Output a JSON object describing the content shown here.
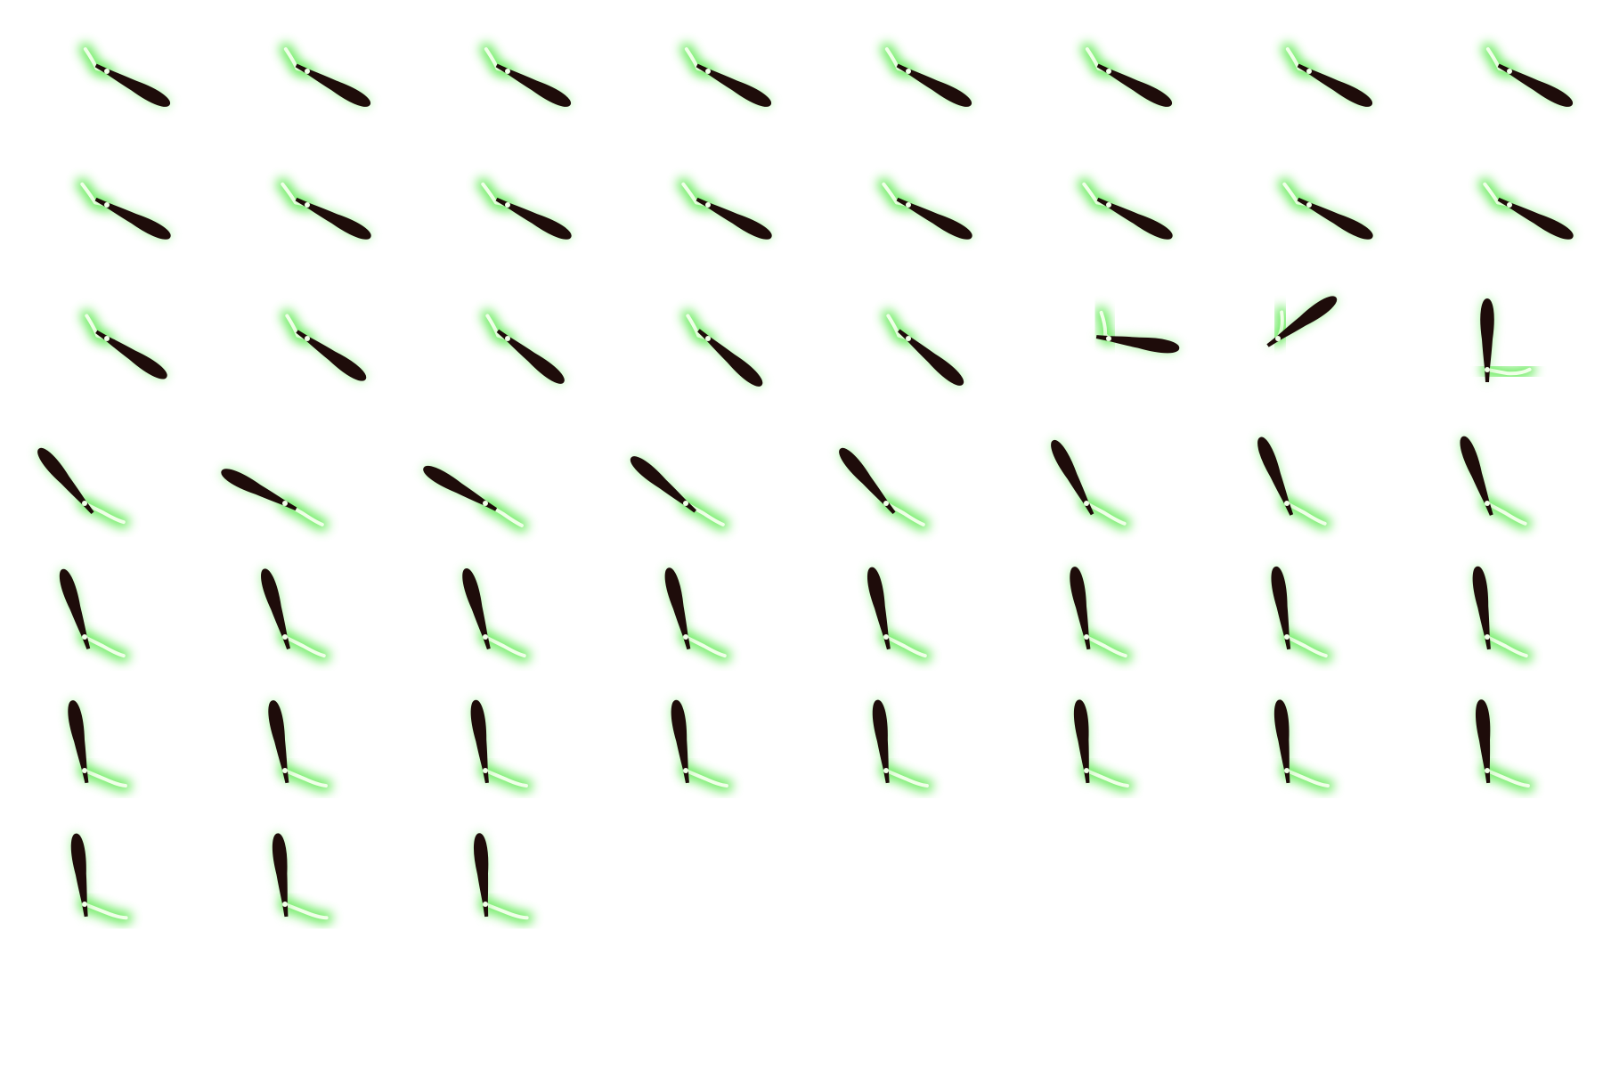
{
  "sprite_sheet": {
    "frames": [
      {
        "club_angle": 28,
        "arm_angle": 120
      },
      {
        "club_angle": 28,
        "arm_angle": 120
      },
      {
        "club_angle": 28,
        "arm_angle": 120
      },
      {
        "club_angle": 28,
        "arm_angle": 120
      },
      {
        "club_angle": 28,
        "arm_angle": 120
      },
      {
        "club_angle": 28,
        "arm_angle": 120
      },
      {
        "club_angle": 28,
        "arm_angle": 120
      },
      {
        "club_angle": 28,
        "arm_angle": 120
      },
      {
        "club_angle": 27,
        "arm_angle": 125
      },
      {
        "club_angle": 27,
        "arm_angle": 125
      },
      {
        "club_angle": 27,
        "arm_angle": 125
      },
      {
        "club_angle": 27,
        "arm_angle": 125
      },
      {
        "club_angle": 27,
        "arm_angle": 125
      },
      {
        "club_angle": 27,
        "arm_angle": 125
      },
      {
        "club_angle": 27,
        "arm_angle": 125
      },
      {
        "club_angle": 27,
        "arm_angle": 125
      },
      {
        "club_angle": 33,
        "arm_angle": 118
      },
      {
        "club_angle": 35,
        "arm_angle": 118
      },
      {
        "club_angle": 38,
        "arm_angle": 118
      },
      {
        "club_angle": 41,
        "arm_angle": 118
      },
      {
        "club_angle": 40,
        "arm_angle": 118
      },
      {
        "club_angle": 8,
        "arm_angle": 100
      },
      {
        "club_angle": -35,
        "arm_angle": 85
      },
      {
        "club_angle": -90,
        "arm_angle": 10
      },
      {
        "club_angle": -130,
        "arm_angle": -25
      },
      {
        "club_angle": -153,
        "arm_angle": -30
      },
      {
        "club_angle": -150,
        "arm_angle": -32
      },
      {
        "club_angle": -140,
        "arm_angle": -30
      },
      {
        "club_angle": -130,
        "arm_angle": -30
      },
      {
        "club_angle": -118,
        "arm_angle": -28
      },
      {
        "club_angle": -112,
        "arm_angle": -28
      },
      {
        "club_angle": -110,
        "arm_angle": -28
      },
      {
        "club_angle": -108,
        "arm_angle": -25
      },
      {
        "club_angle": -107,
        "arm_angle": -25
      },
      {
        "club_angle": -106,
        "arm_angle": -25
      },
      {
        "club_angle": -104,
        "arm_angle": -25
      },
      {
        "club_angle": -102,
        "arm_angle": -25
      },
      {
        "club_angle": -100,
        "arm_angle": -25
      },
      {
        "club_angle": -99,
        "arm_angle": -25
      },
      {
        "club_angle": -98,
        "arm_angle": -25
      },
      {
        "club_angle": -100,
        "arm_angle": -18
      },
      {
        "club_angle": -100,
        "arm_angle": -18
      },
      {
        "club_angle": -98,
        "arm_angle": -18
      },
      {
        "club_angle": -98,
        "arm_angle": -18
      },
      {
        "club_angle": -97,
        "arm_angle": -18
      },
      {
        "club_angle": -96,
        "arm_angle": -18
      },
      {
        "club_angle": -96,
        "arm_angle": -18
      },
      {
        "club_angle": -95,
        "arm_angle": -18
      },
      {
        "club_angle": -97,
        "arm_angle": -15
      },
      {
        "club_angle": -96,
        "arm_angle": -15
      },
      {
        "club_angle": -95,
        "arm_angle": -15
      }
    ],
    "colors": {
      "club": "#1e0c0a",
      "glow": "#56e84a",
      "arm_core": "#f0ffe8",
      "background": "#ffffff"
    },
    "icon": "glowing-club-sprite"
  }
}
